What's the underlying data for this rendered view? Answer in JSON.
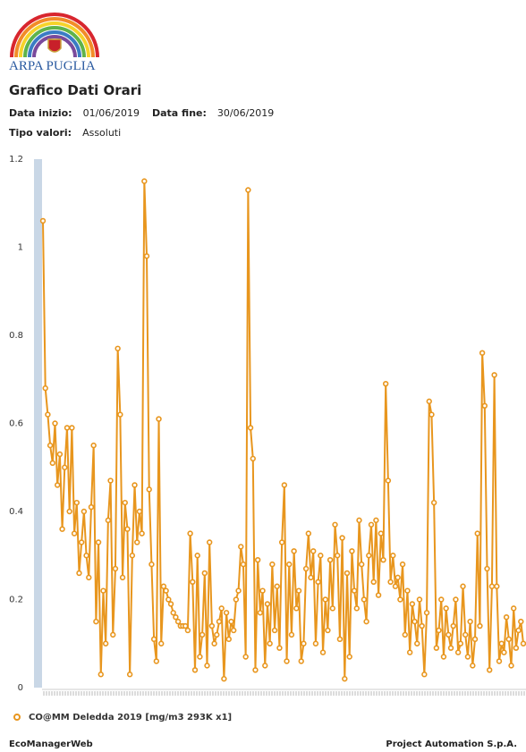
{
  "header": {
    "org": "ARPA PUGLIA",
    "title": "Grafico Dati Orari",
    "start_label": "Data inizio:",
    "start_value": "01/06/2019",
    "end_label": "Data fine:",
    "end_value": "30/06/2019",
    "type_label": "Tipo valori:",
    "type_value": "Assoluti"
  },
  "chart_data": {
    "type": "line",
    "ylim": [
      0,
      1.2
    ],
    "yticks": [
      0,
      0.2,
      0.4,
      0.6,
      0.8,
      1,
      1.2
    ],
    "legend": "bottom",
    "series": [
      {
        "name": "CO@MM Deledda 2019 [mg/m3 293K x1]",
        "color": "#e8961e",
        "values": [
          1.06,
          0.68,
          0.62,
          0.55,
          0.51,
          0.6,
          0.46,
          0.53,
          0.36,
          0.5,
          0.59,
          0.4,
          0.59,
          0.35,
          0.42,
          0.26,
          0.33,
          0.4,
          0.3,
          0.25,
          0.41,
          0.55,
          0.15,
          0.33,
          0.03,
          0.22,
          0.1,
          0.38,
          0.47,
          0.12,
          0.27,
          0.77,
          0.62,
          0.25,
          0.42,
          0.36,
          0.03,
          0.3,
          0.46,
          0.33,
          0.4,
          0.35,
          1.15,
          0.98,
          0.45,
          0.28,
          0.11,
          0.06,
          0.61,
          0.1,
          0.23,
          0.22,
          0.2,
          0.19,
          0.17,
          0.16,
          0.15,
          0.14,
          0.14,
          0.14,
          0.13,
          0.35,
          0.24,
          0.04,
          0.3,
          0.07,
          0.12,
          0.26,
          0.05,
          0.33,
          0.14,
          0.1,
          0.12,
          0.15,
          0.18,
          0.02,
          0.17,
          0.11,
          0.15,
          0.13,
          0.2,
          0.22,
          0.32,
          0.28,
          0.07,
          1.13,
          0.59,
          0.52,
          0.04,
          0.29,
          0.17,
          0.22,
          0.05,
          0.19,
          0.1,
          0.28,
          0.13,
          0.23,
          0.09,
          0.33,
          0.46,
          0.06,
          0.28,
          0.12,
          0.31,
          0.18,
          0.22,
          0.06,
          0.1,
          0.27,
          0.35,
          0.25,
          0.31,
          0.1,
          0.24,
          0.3,
          0.08,
          0.2,
          0.13,
          0.29,
          0.18,
          0.37,
          0.3,
          0.11,
          0.34,
          0.02,
          0.26,
          0.07,
          0.31,
          0.22,
          0.18,
          0.38,
          0.28,
          0.2,
          0.15,
          0.3,
          0.37,
          0.24,
          0.38,
          0.21,
          0.35,
          0.29,
          0.69,
          0.47,
          0.24,
          0.3,
          0.23,
          0.25,
          0.2,
          0.28,
          0.12,
          0.22,
          0.08,
          0.19,
          0.15,
          0.1,
          0.2,
          0.14,
          0.03,
          0.17,
          0.65,
          0.62,
          0.42,
          0.09,
          0.13,
          0.2,
          0.07,
          0.18,
          0.12,
          0.09,
          0.14,
          0.2,
          0.08,
          0.1,
          0.23,
          0.12,
          0.07,
          0.15,
          0.05,
          0.11,
          0.35,
          0.14,
          0.76,
          0.64,
          0.27,
          0.04,
          0.23,
          0.71,
          0.23,
          0.06,
          0.1,
          0.08,
          0.16,
          0.11,
          0.05,
          0.18,
          0.09,
          0.13,
          0.15,
          0.1
        ]
      }
    ]
  },
  "footer": {
    "left": "EcoManagerWeb",
    "right": "Project Automation S.p.A."
  }
}
